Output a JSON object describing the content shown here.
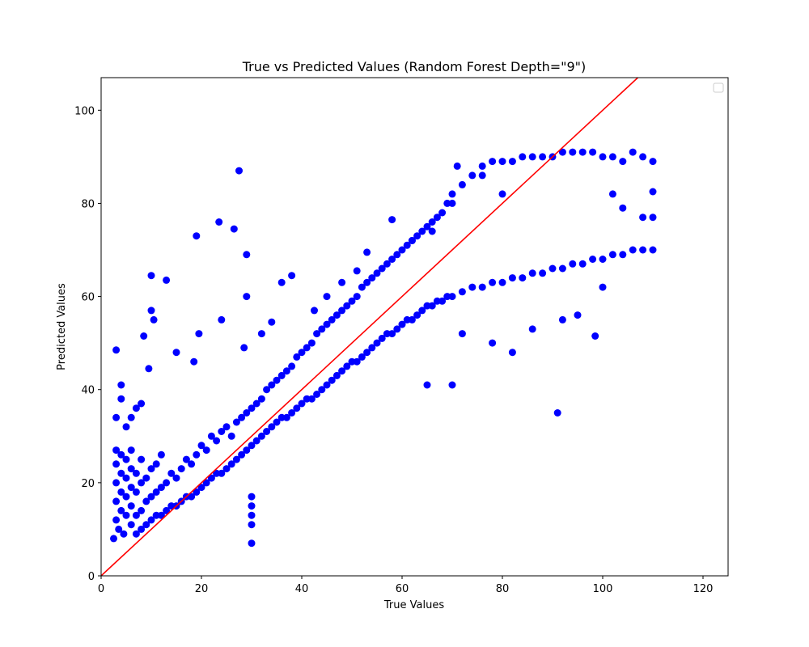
{
  "chart_data": {
    "type": "scatter",
    "title": "True vs Predicted Values (Random Forest Depth=\"9\")",
    "xlabel": "True Values",
    "ylabel": "Predicted Values",
    "xlim": [
      0,
      125
    ],
    "ylim": [
      0,
      107
    ],
    "xticks": [
      0,
      20,
      40,
      60,
      80,
      100,
      120
    ],
    "yticks": [
      0,
      20,
      40,
      60,
      80,
      100
    ],
    "grid": false,
    "legend": "top-right (empty)",
    "series": [
      {
        "marker": "circle",
        "color": "#0000ff",
        "points": [
          [
            2.5,
            8
          ],
          [
            3,
            12
          ],
          [
            3,
            16
          ],
          [
            3,
            20
          ],
          [
            3,
            24
          ],
          [
            3,
            27
          ],
          [
            3.5,
            10
          ],
          [
            4,
            14
          ],
          [
            4,
            18
          ],
          [
            4,
            22
          ],
          [
            4,
            26
          ],
          [
            4.5,
            9
          ],
          [
            5,
            13
          ],
          [
            5,
            17
          ],
          [
            5,
            21
          ],
          [
            5,
            25
          ],
          [
            6,
            11
          ],
          [
            6,
            15
          ],
          [
            6,
            19
          ],
          [
            6,
            23
          ],
          [
            6,
            27
          ],
          [
            7,
            9
          ],
          [
            7,
            13
          ],
          [
            7,
            18
          ],
          [
            7,
            22
          ],
          [
            8,
            10
          ],
          [
            8,
            14
          ],
          [
            8,
            20
          ],
          [
            8,
            25
          ],
          [
            9,
            11
          ],
          [
            9,
            16
          ],
          [
            9,
            21
          ],
          [
            10,
            12
          ],
          [
            10,
            17
          ],
          [
            10,
            23
          ],
          [
            11,
            13
          ],
          [
            11,
            18
          ],
          [
            11,
            24
          ],
          [
            12,
            13
          ],
          [
            12,
            19
          ],
          [
            12,
            26
          ],
          [
            13,
            14
          ],
          [
            13,
            20
          ],
          [
            14,
            15
          ],
          [
            14,
            22
          ],
          [
            15,
            15
          ],
          [
            15,
            21
          ],
          [
            16,
            16
          ],
          [
            16,
            23
          ],
          [
            17,
            17
          ],
          [
            17,
            25
          ],
          [
            18,
            17
          ],
          [
            18,
            24
          ],
          [
            19,
            18
          ],
          [
            19,
            26
          ],
          [
            20,
            19
          ],
          [
            20,
            28
          ],
          [
            21,
            20
          ],
          [
            21,
            27
          ],
          [
            22,
            21
          ],
          [
            22,
            30
          ],
          [
            23,
            22
          ],
          [
            23,
            29
          ],
          [
            24,
            22
          ],
          [
            24,
            31
          ],
          [
            25,
            23
          ],
          [
            25,
            32
          ],
          [
            26,
            24
          ],
          [
            26,
            30
          ],
          [
            27,
            25
          ],
          [
            27,
            33
          ],
          [
            28,
            26
          ],
          [
            28,
            34
          ],
          [
            29,
            27
          ],
          [
            29,
            35
          ],
          [
            30,
            28
          ],
          [
            30,
            36
          ],
          [
            31,
            29
          ],
          [
            31,
            37
          ],
          [
            32,
            30
          ],
          [
            32,
            38
          ],
          [
            33,
            31
          ],
          [
            33,
            40
          ],
          [
            34,
            32
          ],
          [
            34,
            41
          ],
          [
            35,
            33
          ],
          [
            35,
            42
          ],
          [
            36,
            34
          ],
          [
            36,
            43
          ],
          [
            37,
            34
          ],
          [
            37,
            44
          ],
          [
            38,
            35
          ],
          [
            38,
            45
          ],
          [
            39,
            36
          ],
          [
            39,
            47
          ],
          [
            40,
            37
          ],
          [
            40,
            48
          ],
          [
            41,
            38
          ],
          [
            41,
            49
          ],
          [
            42,
            38
          ],
          [
            42,
            50
          ],
          [
            43,
            39
          ],
          [
            43,
            52
          ],
          [
            44,
            40
          ],
          [
            44,
            53
          ],
          [
            45,
            41
          ],
          [
            45,
            54
          ],
          [
            46,
            42
          ],
          [
            46,
            55
          ],
          [
            47,
            43
          ],
          [
            47,
            56
          ],
          [
            48,
            44
          ],
          [
            48,
            57
          ],
          [
            49,
            45
          ],
          [
            49,
            58
          ],
          [
            50,
            46
          ],
          [
            50,
            59
          ],
          [
            51,
            46
          ],
          [
            51,
            60
          ],
          [
            52,
            47
          ],
          [
            52,
            62
          ],
          [
            53,
            48
          ],
          [
            53,
            63
          ],
          [
            54,
            49
          ],
          [
            54,
            64
          ],
          [
            55,
            50
          ],
          [
            55,
            65
          ],
          [
            56,
            51
          ],
          [
            56,
            66
          ],
          [
            57,
            52
          ],
          [
            57,
            67
          ],
          [
            58,
            52
          ],
          [
            58,
            68
          ],
          [
            59,
            53
          ],
          [
            59,
            69
          ],
          [
            60,
            54
          ],
          [
            60,
            70
          ],
          [
            61,
            55
          ],
          [
            61,
            71
          ],
          [
            62,
            55
          ],
          [
            62,
            72
          ],
          [
            63,
            56
          ],
          [
            63,
            73
          ],
          [
            64,
            57
          ],
          [
            64,
            74
          ],
          [
            65,
            58
          ],
          [
            65,
            75
          ],
          [
            66,
            58
          ],
          [
            66,
            76
          ],
          [
            67,
            59
          ],
          [
            67,
            77
          ],
          [
            68,
            59
          ],
          [
            68,
            78
          ],
          [
            69,
            60
          ],
          [
            69,
            80
          ],
          [
            70,
            60
          ],
          [
            70,
            82
          ],
          [
            72,
            61
          ],
          [
            72,
            84
          ],
          [
            74,
            62
          ],
          [
            74,
            86
          ],
          [
            76,
            62
          ],
          [
            76,
            88
          ],
          [
            78,
            63
          ],
          [
            78,
            89
          ],
          [
            80,
            63
          ],
          [
            80,
            89
          ],
          [
            82,
            64
          ],
          [
            82,
            89
          ],
          [
            84,
            64
          ],
          [
            84,
            90
          ],
          [
            86,
            65
          ],
          [
            86,
            90
          ],
          [
            88,
            65
          ],
          [
            88,
            90
          ],
          [
            90,
            66
          ],
          [
            90,
            90
          ],
          [
            92,
            66
          ],
          [
            92,
            91
          ],
          [
            94,
            67
          ],
          [
            94,
            91
          ],
          [
            96,
            67
          ],
          [
            96,
            91
          ],
          [
            98,
            68
          ],
          [
            98,
            91
          ],
          [
            100,
            68
          ],
          [
            100,
            90
          ],
          [
            102,
            69
          ],
          [
            102,
            90
          ],
          [
            104,
            69
          ],
          [
            104,
            89
          ],
          [
            106,
            70
          ],
          [
            106,
            91
          ],
          [
            108,
            70
          ],
          [
            108,
            90
          ],
          [
            110,
            70
          ],
          [
            110,
            89
          ],
          [
            3,
            34
          ],
          [
            3,
            48.5
          ],
          [
            4,
            41
          ],
          [
            4,
            38
          ],
          [
            5,
            32
          ],
          [
            6,
            34
          ],
          [
            7,
            36
          ],
          [
            8,
            37
          ],
          [
            8.5,
            51.5
          ],
          [
            9.5,
            44.5
          ],
          [
            10,
            64.5
          ],
          [
            10,
            57
          ],
          [
            10.5,
            55
          ],
          [
            13,
            63.5
          ],
          [
            15,
            48
          ],
          [
            18.5,
            46
          ],
          [
            19,
            73
          ],
          [
            19.5,
            52
          ],
          [
            23.5,
            76
          ],
          [
            24,
            55
          ],
          [
            26.5,
            74.5
          ],
          [
            27.5,
            87
          ],
          [
            29,
            69
          ],
          [
            29,
            60
          ],
          [
            28.5,
            49
          ],
          [
            30,
            17
          ],
          [
            30,
            15
          ],
          [
            30,
            13
          ],
          [
            30,
            11
          ],
          [
            30,
            7
          ],
          [
            32,
            52
          ],
          [
            34,
            54.5
          ],
          [
            36,
            63
          ],
          [
            38,
            64.5
          ],
          [
            42.5,
            57
          ],
          [
            45,
            60
          ],
          [
            48,
            63
          ],
          [
            51,
            65.5
          ],
          [
            53,
            69.5
          ],
          [
            58,
            76.5
          ],
          [
            62,
            72
          ],
          [
            66,
            74
          ],
          [
            70,
            80
          ],
          [
            71,
            88
          ],
          [
            76,
            86
          ],
          [
            80,
            82
          ],
          [
            98.5,
            51.5
          ],
          [
            91,
            35
          ],
          [
            102,
            82
          ],
          [
            104,
            79
          ],
          [
            108,
            77
          ],
          [
            110,
            77
          ],
          [
            110,
            82.5
          ],
          [
            100,
            62
          ],
          [
            95,
            56
          ],
          [
            92,
            55
          ],
          [
            86,
            53
          ],
          [
            82,
            48
          ],
          [
            78,
            50
          ],
          [
            72,
            52
          ],
          [
            70,
            41
          ],
          [
            65,
            41
          ]
        ]
      }
    ],
    "reference_line": {
      "color": "#ff0000",
      "x": [
        0,
        107
      ],
      "y": [
        0,
        107
      ]
    }
  }
}
